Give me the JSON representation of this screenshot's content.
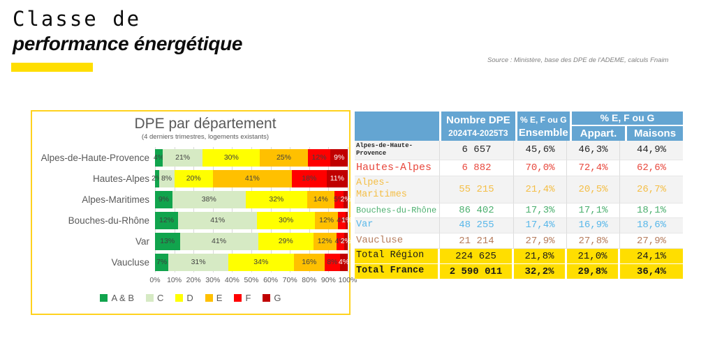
{
  "header": {
    "title_line1": "Classe de",
    "title_line2": "performance énergétique",
    "accent_color": "#FFDE00",
    "source": "Source : Ministère, base des DPE de l'ADEME, calculs Fnaim"
  },
  "chart_data": [
    {
      "type": "bar",
      "orientation": "horizontal",
      "stacked": true,
      "title": "DPE par département",
      "subtitle": "(4 derniers trimestres, logements existants)",
      "panel_border_color": "#FFD21E",
      "categories": [
        "Alpes-de-Haute-Provence",
        "Hautes-Alpes",
        "Alpes-Maritimes",
        "Bouches-du-Rhône",
        "Var",
        "Vaucluse"
      ],
      "series": [
        {
          "name": "A & B",
          "color": "#11A44D",
          "label_color": "#3F3F3F",
          "values": [
            4,
            2,
            9,
            12,
            13,
            7
          ]
        },
        {
          "name": "C",
          "color": "#D6EAC4",
          "label_color": "#3F3F3F",
          "values": [
            21,
            8,
            38,
            41,
            41,
            31
          ]
        },
        {
          "name": "D",
          "color": "#FFFF00",
          "label_color": "#3F3F3F",
          "values": [
            30,
            20,
            32,
            30,
            29,
            34
          ]
        },
        {
          "name": "E",
          "color": "#FFC000",
          "label_color": "#3F3F3F",
          "values": [
            25,
            41,
            14,
            12,
            12,
            16
          ]
        },
        {
          "name": "F",
          "color": "#FF0000",
          "label_color": "#3F3F3F",
          "values": [
            12,
            18,
            5,
            4,
            4,
            8
          ]
        },
        {
          "name": "G",
          "color": "#C00000",
          "label_color": "#FFFFFF",
          "values": [
            9,
            11,
            2,
            1,
            2,
            4
          ]
        }
      ],
      "xlim": [
        0,
        100
      ],
      "x_ticks": [
        "0%",
        "10%",
        "20%",
        "30%",
        "40%",
        "50%",
        "60%",
        "70%",
        "80%",
        "90%",
        "100%"
      ],
      "grid": true,
      "legend_position": "bottom"
    },
    {
      "type": "table",
      "header": {
        "bg": "#64A5D2",
        "nombre_line1": "Nombre DPE",
        "nombre_line2": "2024T4-2025T3",
        "efg_ensemble_line1": "% E, F ou G",
        "efg_ensemble_line2": "Ensemble",
        "efg_split_title": "% E, F ou G",
        "efg_split_col1": "Appart.",
        "efg_split_col2": "Maisons"
      },
      "total_bg": "#FFDE00",
      "rows": [
        {
          "label": "Alpes-de-Haute-Provence",
          "color": "#262626",
          "label_class": "lbl-xs",
          "shaded": true,
          "nombre": "6 657",
          "ensemble": "45,6%",
          "appart": "46,3%",
          "maisons": "44,9%"
        },
        {
          "label": "Hautes-Alpes",
          "color": "#E8483D",
          "label_class": "lbl-lg",
          "shaded": false,
          "nombre": "6 882",
          "ensemble": "70,0%",
          "appart": "72,4%",
          "maisons": "62,6%"
        },
        {
          "label": "Alpes-Maritimes",
          "color": "#F4BE45",
          "label_class": "lbl-md",
          "shaded": true,
          "nombre": "55 215",
          "ensemble": "21,4%",
          "appart": "20,5%",
          "maisons": "26,7%"
        },
        {
          "label": "Bouches-du-Rhône",
          "color": "#4BAF6E",
          "label_class": "lbl-sm",
          "shaded": false,
          "nombre": "86 402",
          "ensemble": "17,3%",
          "appart": "17,1%",
          "maisons": "18,1%"
        },
        {
          "label": "Var",
          "color": "#58B7E9",
          "label_class": "lbl-md",
          "shaded": true,
          "nombre": "48 255",
          "ensemble": "17,4%",
          "appart": "16,9%",
          "maisons": "18,6%"
        },
        {
          "label": "Vaucluse",
          "color": "#B67C5C",
          "label_class": "lbl-ml",
          "shaded": false,
          "nombre": "21 214",
          "ensemble": "27,9%",
          "appart": "27,8%",
          "maisons": "27,9%"
        },
        {
          "label": "Total Région",
          "color": "#1A1A1A",
          "label_class": "lbl-md",
          "total": true,
          "nombre": "224 625",
          "ensemble": "21,8%",
          "appart": "21,0%",
          "maisons": "24,1%"
        },
        {
          "label": "Total France",
          "color": "#1A1A1A",
          "label_class": "lbl-md",
          "total": true,
          "bold": true,
          "nombre": "2 590 011",
          "ensemble": "32,2%",
          "appart": "29,8%",
          "maisons": "36,4%"
        }
      ]
    }
  ]
}
